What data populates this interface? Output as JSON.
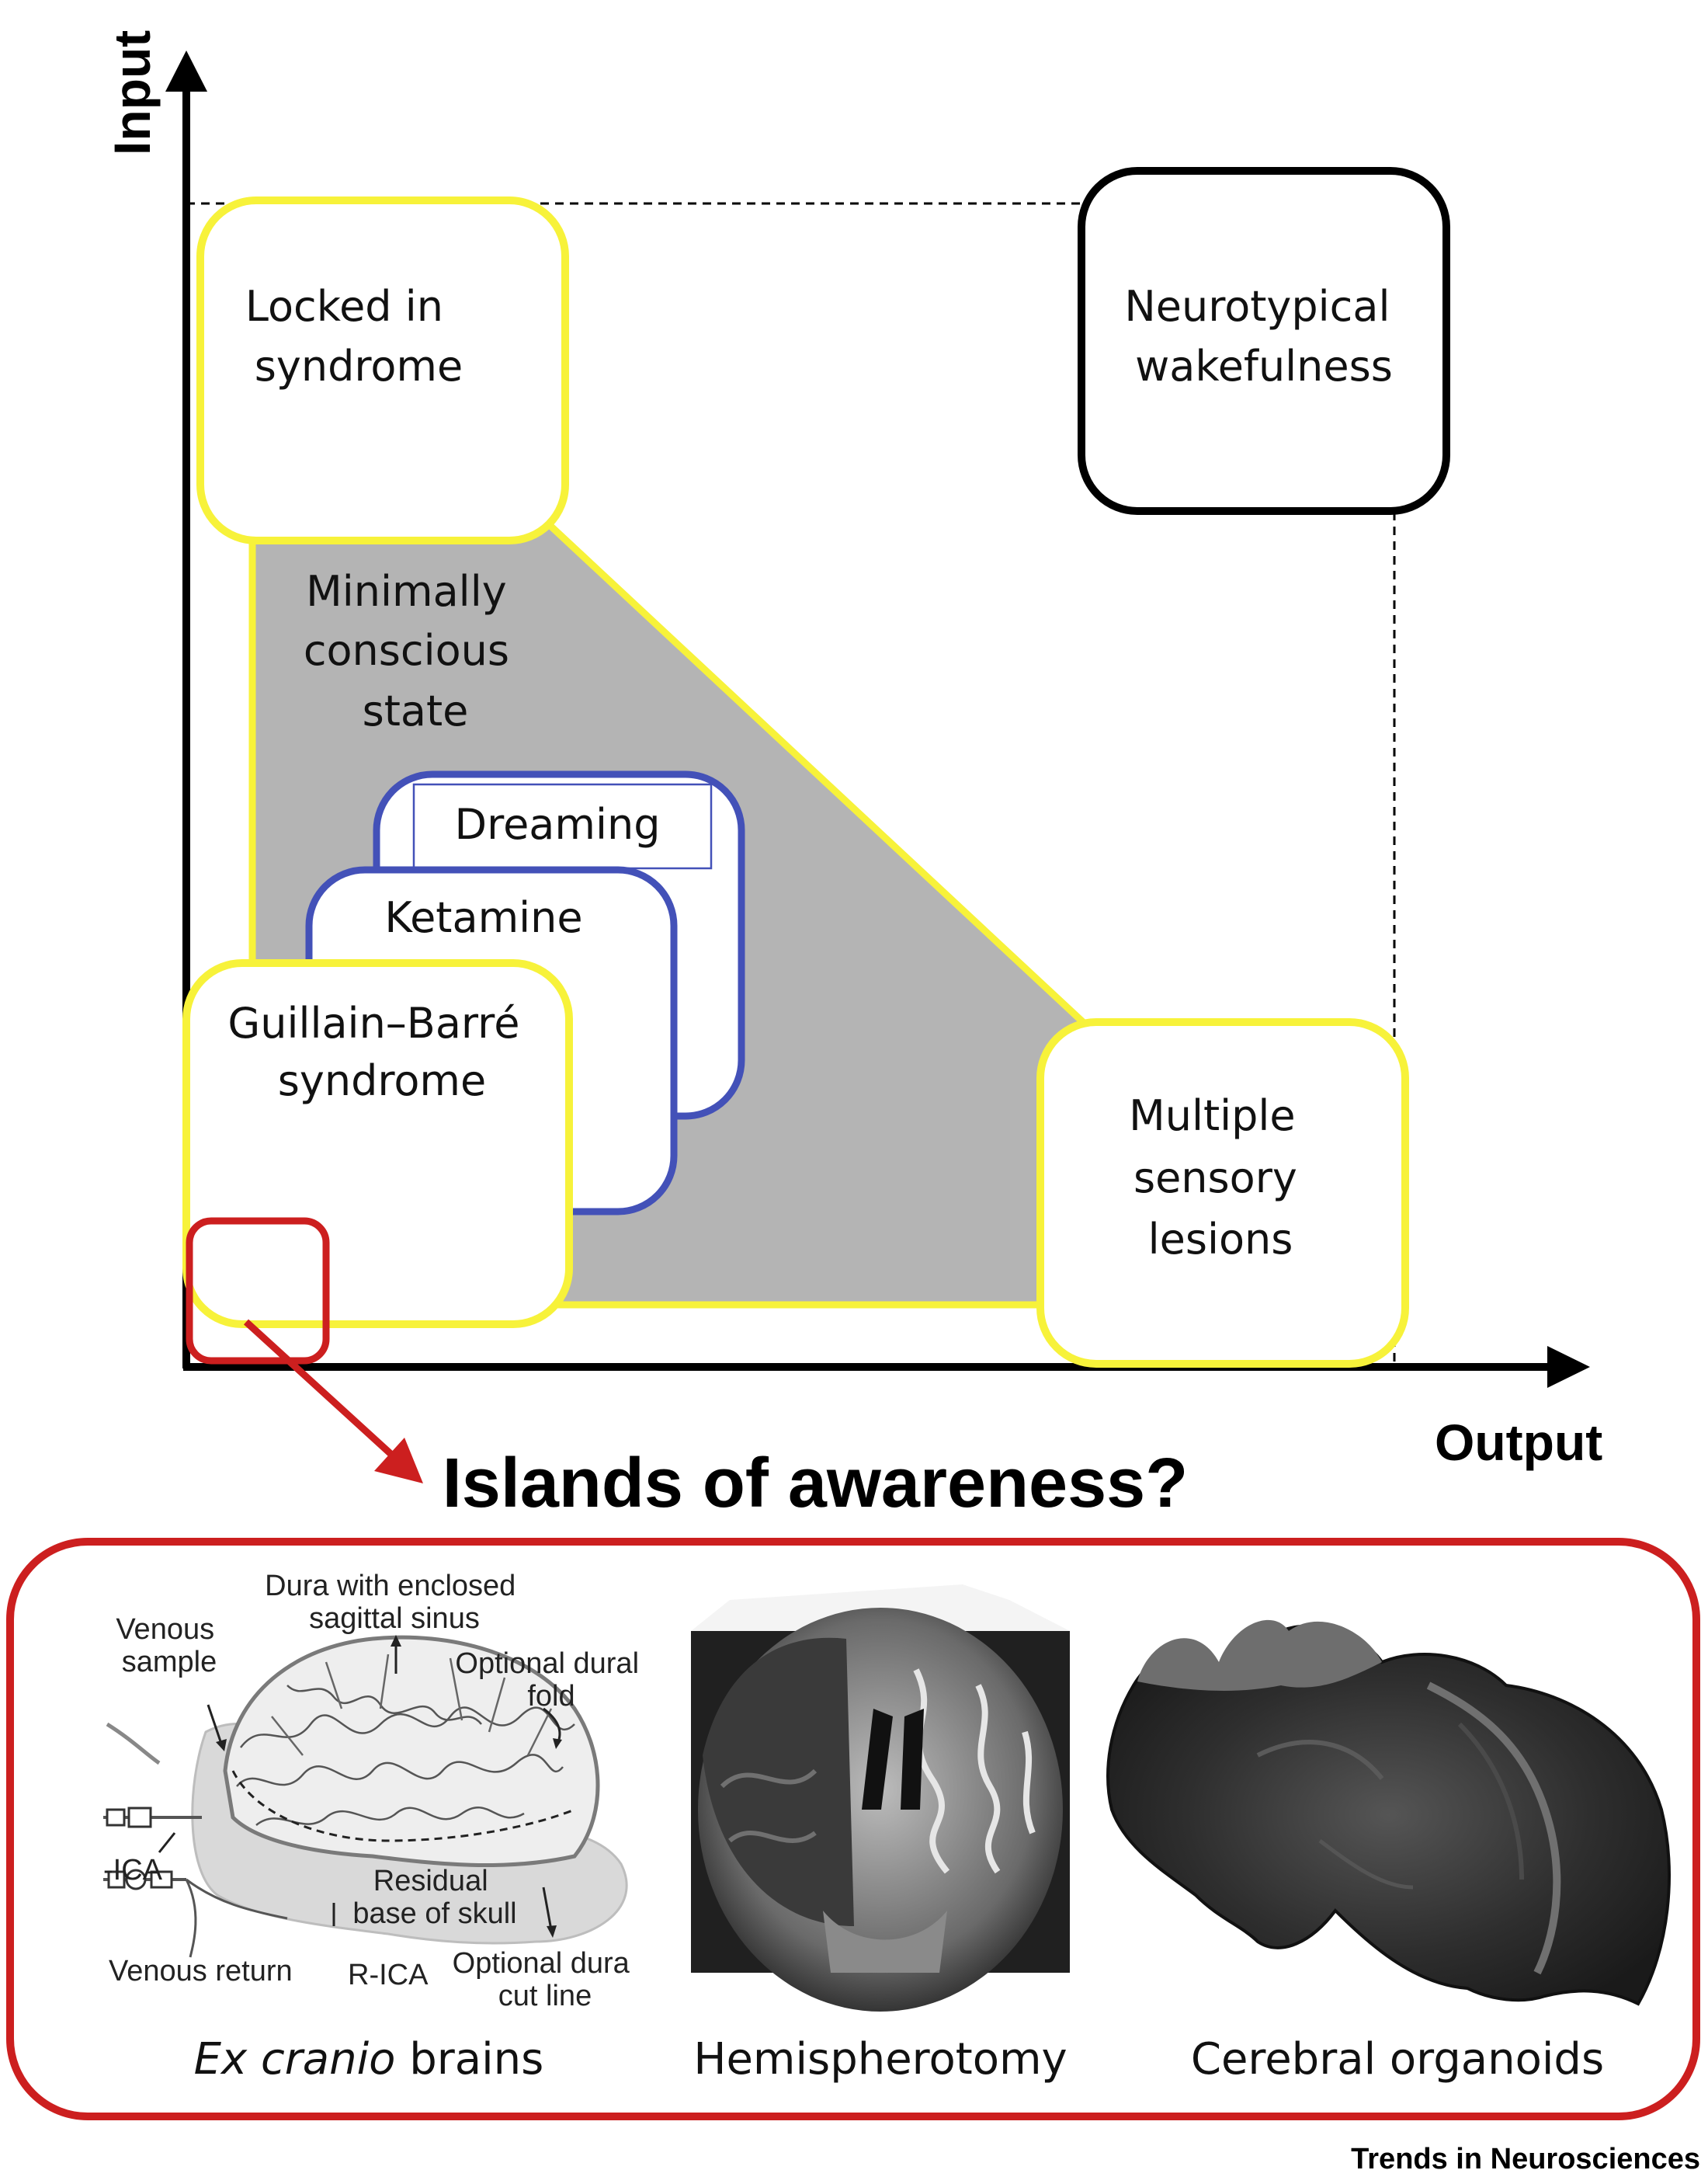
{
  "axes": {
    "y_label": "Input",
    "x_label": "Output"
  },
  "states": {
    "locked_in": [
      "Locked in",
      "syndrome"
    ],
    "neurotypical": [
      "Neurotypical",
      "wakefulness"
    ],
    "minimally_conscious": [
      "Minimally",
      "conscious",
      "state"
    ],
    "dreaming": "Dreaming",
    "ketamine": "Ketamine",
    "guillain_barre": [
      "Guillain–Barré",
      "syndrome"
    ],
    "multiple_sensory": [
      "Multiple",
      "sensory",
      "lesions"
    ]
  },
  "islands_title": "Islands of awareness?",
  "panels": {
    "ex_cranio": {
      "caption_italic": "Ex cranio",
      "caption_rest": " brains",
      "annotations": {
        "dura": [
          "Dura with enclosed",
          "sagittal sinus"
        ],
        "venous_sample": [
          "Venous",
          "sample"
        ],
        "optional_dural_fold": [
          "Optional dural",
          "fold"
        ],
        "l_ica": "-ICA",
        "residual": [
          "Residual",
          "base of skull"
        ],
        "venous_return": "Venous return",
        "r_ica": "R-ICA",
        "optional_dura_cut": [
          "Optional dura",
          "cut line"
        ]
      }
    },
    "hemispherotomy": {
      "caption": "Hemispherotomy"
    },
    "organoids": {
      "caption": "Cerebral organoids"
    }
  },
  "source": "Trends in Neurosciences",
  "colors": {
    "yellow": "#f7f23a",
    "blue": "#4351b8",
    "red": "#cc1f1f",
    "gray": "#b4b4b4"
  }
}
